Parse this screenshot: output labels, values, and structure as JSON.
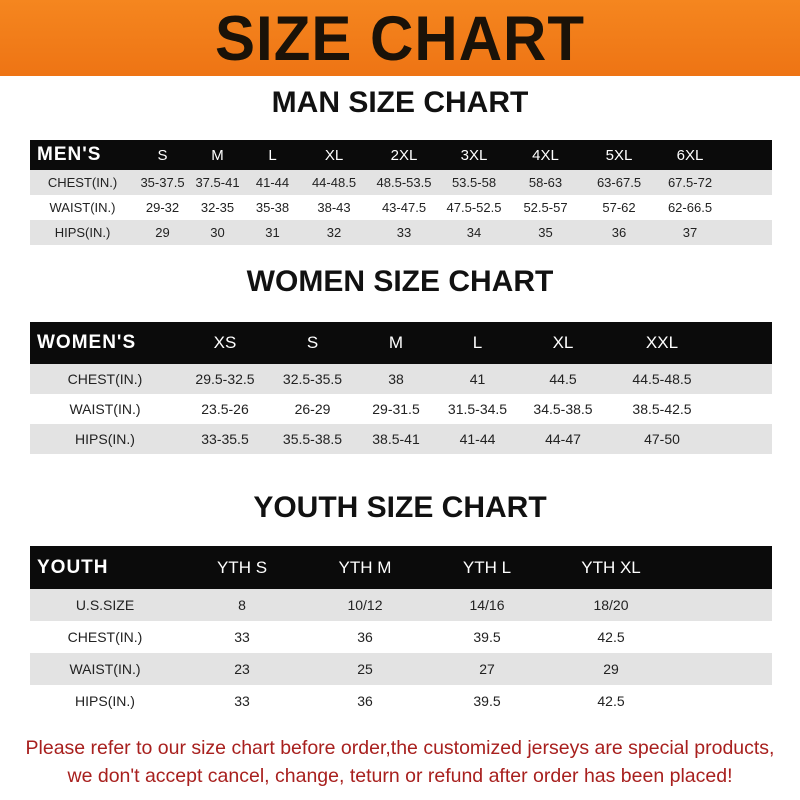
{
  "banner_title": "SIZE CHART",
  "men": {
    "title": "MAN SIZE CHART",
    "header_label": "MEN'S",
    "sizes": [
      "S",
      "M",
      "L",
      "XL",
      "2XL",
      "3XL",
      "4XL",
      "5XL",
      "6XL"
    ],
    "rows": [
      {
        "label": "CHEST(IN.)",
        "values": [
          "35-37.5",
          "37.5-41",
          "41-44",
          "44-48.5",
          "48.5-53.5",
          "53.5-58",
          "58-63",
          "63-67.5",
          "67.5-72"
        ]
      },
      {
        "label": "WAIST(IN.)",
        "values": [
          "29-32",
          "32-35",
          "35-38",
          "38-43",
          "43-47.5",
          "47.5-52.5",
          "52.5-57",
          "57-62",
          "62-66.5"
        ]
      },
      {
        "label": "HIPS(IN.)",
        "values": [
          "29",
          "30",
          "31",
          "32",
          "33",
          "34",
          "35",
          "36",
          "37"
        ]
      }
    ]
  },
  "women": {
    "title": "WOMEN SIZE CHART",
    "header_label": "WOMEN'S",
    "sizes": [
      "XS",
      "S",
      "M",
      "L",
      "XL",
      "XXL"
    ],
    "rows": [
      {
        "label": "CHEST(IN.)",
        "values": [
          "29.5-32.5",
          "32.5-35.5",
          "38",
          "41",
          "44.5",
          "44.5-48.5"
        ]
      },
      {
        "label": "WAIST(IN.)",
        "values": [
          "23.5-26",
          "26-29",
          "29-31.5",
          "31.5-34.5",
          "34.5-38.5",
          "38.5-42.5"
        ]
      },
      {
        "label": "HIPS(IN.)",
        "values": [
          "33-35.5",
          "35.5-38.5",
          "38.5-41",
          "41-44",
          "44-47",
          "47-50"
        ]
      }
    ]
  },
  "youth": {
    "title": "YOUTH SIZE CHART",
    "header_label": "YOUTH",
    "sizes": [
      "YTH S",
      "YTH M",
      "YTH L",
      "YTH XL"
    ],
    "rows": [
      {
        "label": "U.S.SIZE",
        "values": [
          "8",
          "10/12",
          "14/16",
          "18/20"
        ]
      },
      {
        "label": "CHEST(IN.)",
        "values": [
          "33",
          "36",
          "39.5",
          "42.5"
        ]
      },
      {
        "label": "WAIST(IN.)",
        "values": [
          "23",
          "25",
          "27",
          "29"
        ]
      },
      {
        "label": "HIPS(IN.)",
        "values": [
          "33",
          "36",
          "39.5",
          "42.5"
        ]
      }
    ]
  },
  "notice": {
    "line1": "Please refer to our size chart before order,the customized jerseys are special products,",
    "line2": "we don't accept cancel, change, teturn or refund after order has been placed!"
  },
  "colors": {
    "banner": "#f07a18",
    "header_row": "#0b0b0b",
    "stripe": "#e3e3e3",
    "notice": "#a8201e"
  }
}
